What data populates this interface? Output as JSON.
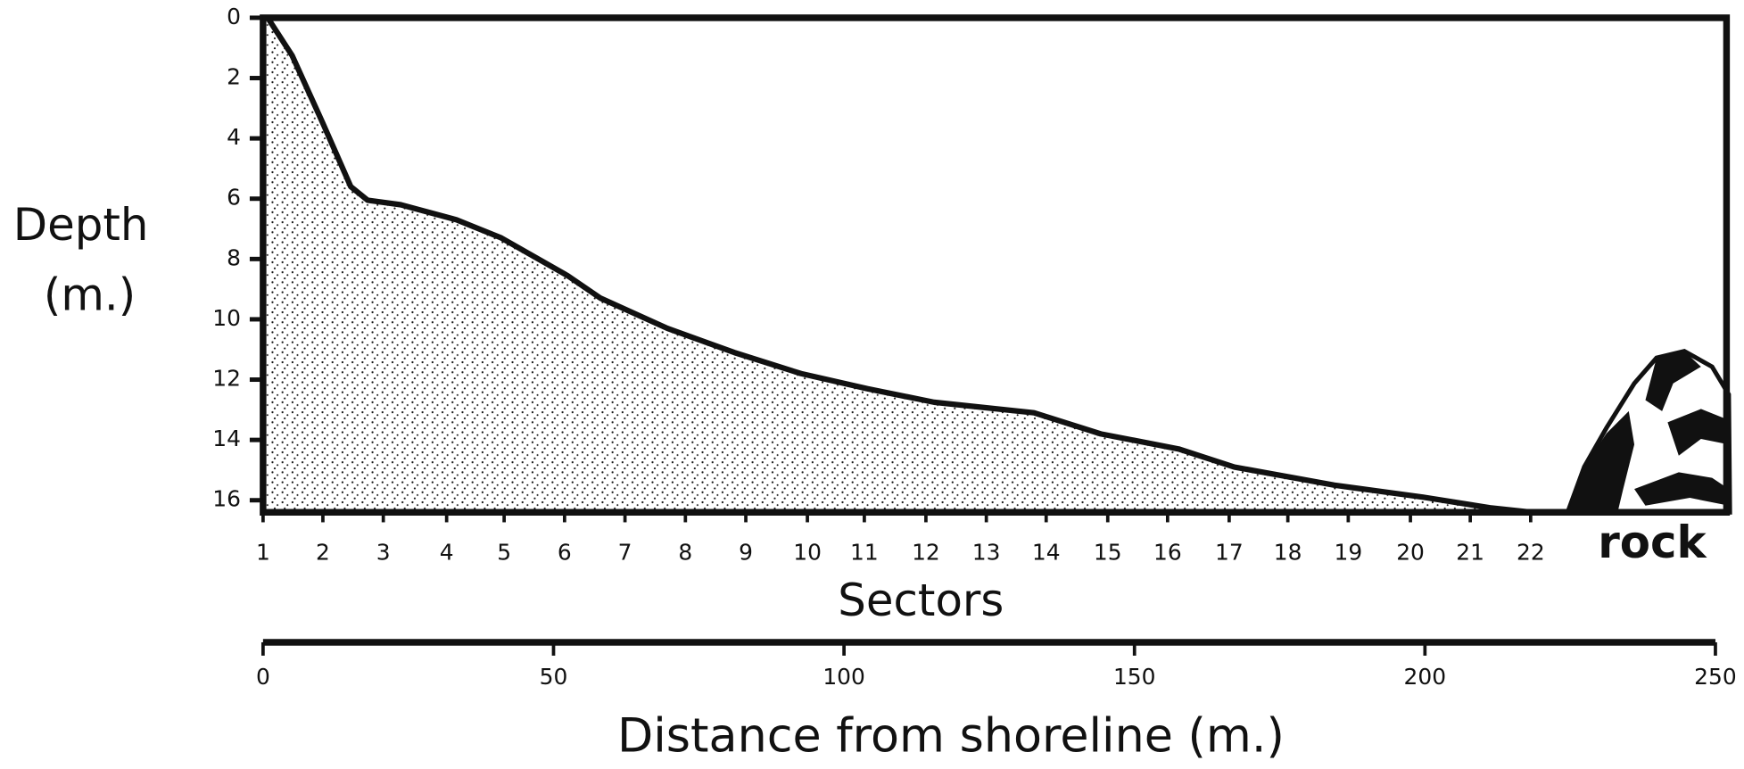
{
  "chart_data": {
    "type": "area",
    "y_label": [
      "Depth",
      "(m.)"
    ],
    "x_label": "Distance from shoreline (m.)",
    "sector_label": "Sectors",
    "annotation": "rock",
    "color": "#111111",
    "y_inverted": true,
    "x": [
      0,
      0.8,
      5,
      10.3,
      15.1,
      18,
      23.7,
      33.3,
      41,
      52.4,
      58.1,
      69.6,
      81.1,
      92.6,
      104,
      115.5,
      132.7,
      144.2,
      157.6,
      167.2,
      184.4,
      199.7,
      211.2,
      218.4
    ],
    "values": [
      0,
      0,
      1.25,
      3.5,
      5.6,
      6.05,
      6.2,
      6.7,
      7.3,
      8.55,
      9.3,
      10.3,
      11.1,
      11.8,
      12.3,
      12.75,
      13.1,
      13.8,
      14.3,
      14.9,
      15.5,
      15.9,
      16.25,
      16.4
    ],
    "ylim": [
      0,
      16.4
    ],
    "yticks": [
      0,
      2,
      4,
      6,
      8,
      10,
      12,
      14,
      16
    ],
    "xlim": [
      0,
      250
    ],
    "xticks": [
      0,
      50,
      100,
      150,
      200,
      250
    ],
    "sector_ticks": [
      {
        "value": 0,
        "label": "1"
      },
      {
        "value": 10.3,
        "label": "2"
      },
      {
        "value": 20.7,
        "label": "3"
      },
      {
        "value": 31.6,
        "label": "4"
      },
      {
        "value": 41.5,
        "label": "5"
      },
      {
        "value": 51.9,
        "label": "6"
      },
      {
        "value": 62.3,
        "label": "7"
      },
      {
        "value": 72.7,
        "label": "8"
      },
      {
        "value": 83.1,
        "label": "9"
      },
      {
        "value": 93.7,
        "label": "10"
      },
      {
        "value": 103.5,
        "label": "11"
      },
      {
        "value": 114.1,
        "label": "12"
      },
      {
        "value": 124.5,
        "label": "13"
      },
      {
        "value": 134.8,
        "label": "14"
      },
      {
        "value": 145.4,
        "label": "15"
      },
      {
        "value": 155.7,
        "label": "16"
      },
      {
        "value": 166.3,
        "label": "17"
      },
      {
        "value": 176.4,
        "label": "18"
      },
      {
        "value": 186.8,
        "label": "19"
      },
      {
        "value": 197.5,
        "label": "20"
      },
      {
        "value": 207.8,
        "label": "21"
      },
      {
        "value": 218.2,
        "label": "22"
      }
    ]
  }
}
